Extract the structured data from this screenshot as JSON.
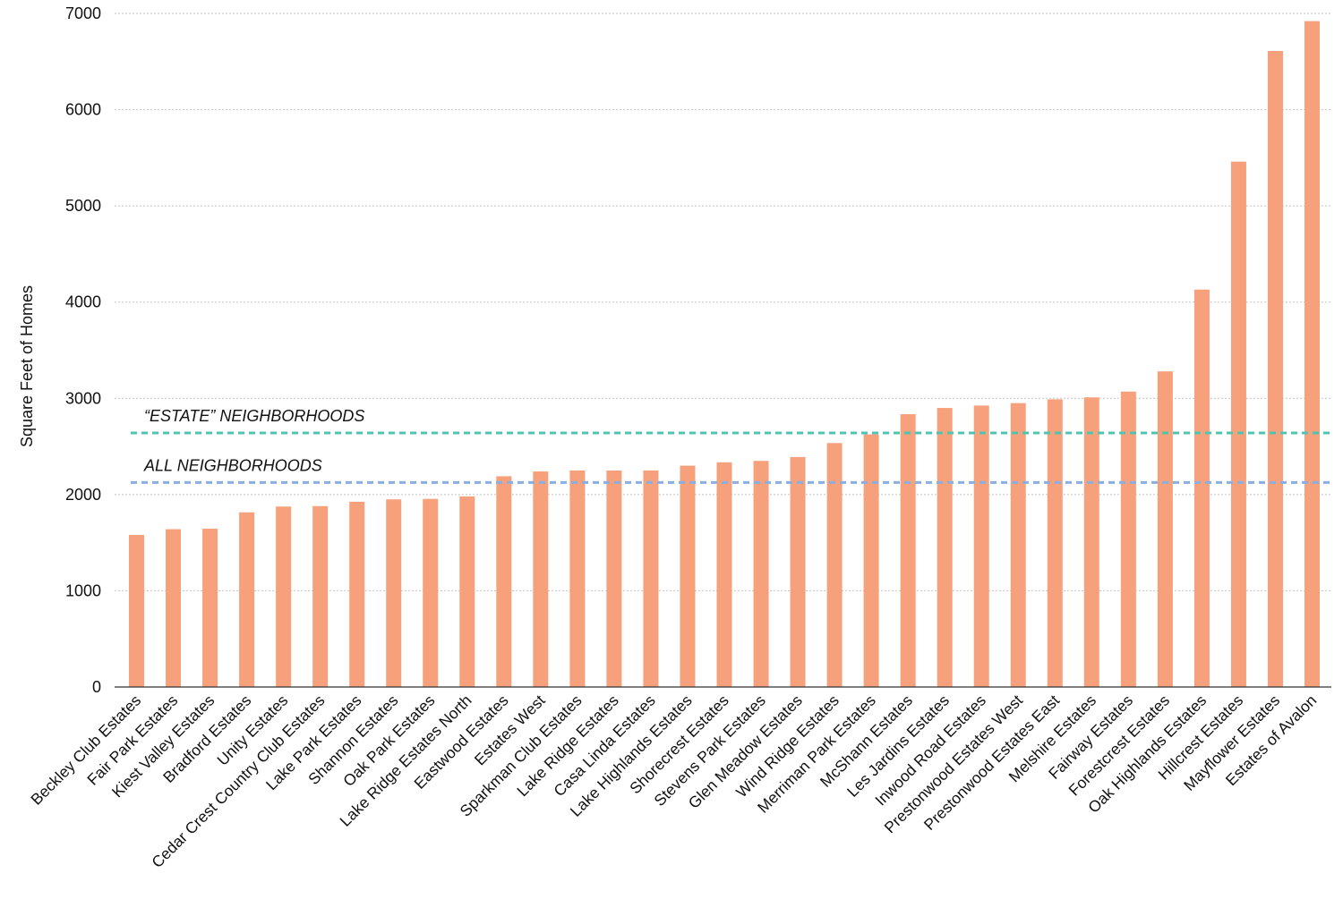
{
  "chart_data": {
    "type": "bar",
    "title": "",
    "xlabel": "",
    "ylabel": "Square Feet of Homes",
    "ylim": [
      0,
      7000
    ],
    "yticks": [
      0,
      1000,
      2000,
      3000,
      4000,
      5000,
      6000,
      7000
    ],
    "grid": "horizontal dotted",
    "bar_color": "#f7a07c",
    "categories": [
      "Beckley Club Estates",
      "Fair Park Estates",
      "Kiest Valley Estates",
      "Bradford Estates",
      "Unity Estates",
      "Cedar Crest Country Club Estates",
      "Lake Park Estates",
      "Shannon Estates",
      "Oak Park Estates",
      "Lake Ridge Estates North",
      "Eastwood Estates",
      "Estates West",
      "Sparkman Club Estates",
      "Lake Ridge Estates",
      "Casa Linda Estates",
      "Lake Highlands Estates",
      "Shorecrest Estates",
      "Stevens Park Estates",
      "Glen Meadow Estates",
      "Wind Ridge Estates",
      "Merriman Park Estates",
      "McShann Estates",
      "Les Jardins Estates",
      "Inwood Road Estates",
      "Prestonwood Estates West",
      "Prestonwood Estates East",
      "Melshire Estates",
      "Fairway Estates",
      "Forestcrest Estates",
      "Oak Highlands Estates",
      "Hillcrest Estates",
      "Mayflower Estates",
      "Estates of Avalon"
    ],
    "values": [
      1580,
      1640,
      1645,
      1815,
      1875,
      1880,
      1925,
      1950,
      1955,
      1980,
      2190,
      2240,
      2250,
      2250,
      2250,
      2300,
      2335,
      2350,
      2390,
      2535,
      2625,
      2835,
      2900,
      2925,
      2950,
      2990,
      3010,
      3070,
      3280,
      4130,
      5460,
      6610,
      6920
    ],
    "reference_lines": [
      {
        "label": "“ESTATE” NEIGHBORHOODS",
        "value": 2640,
        "color": "#4ec5b0"
      },
      {
        "label": "ALL NEIGHBORHOODS",
        "value": 2125,
        "color": "#8aaee0"
      }
    ]
  }
}
